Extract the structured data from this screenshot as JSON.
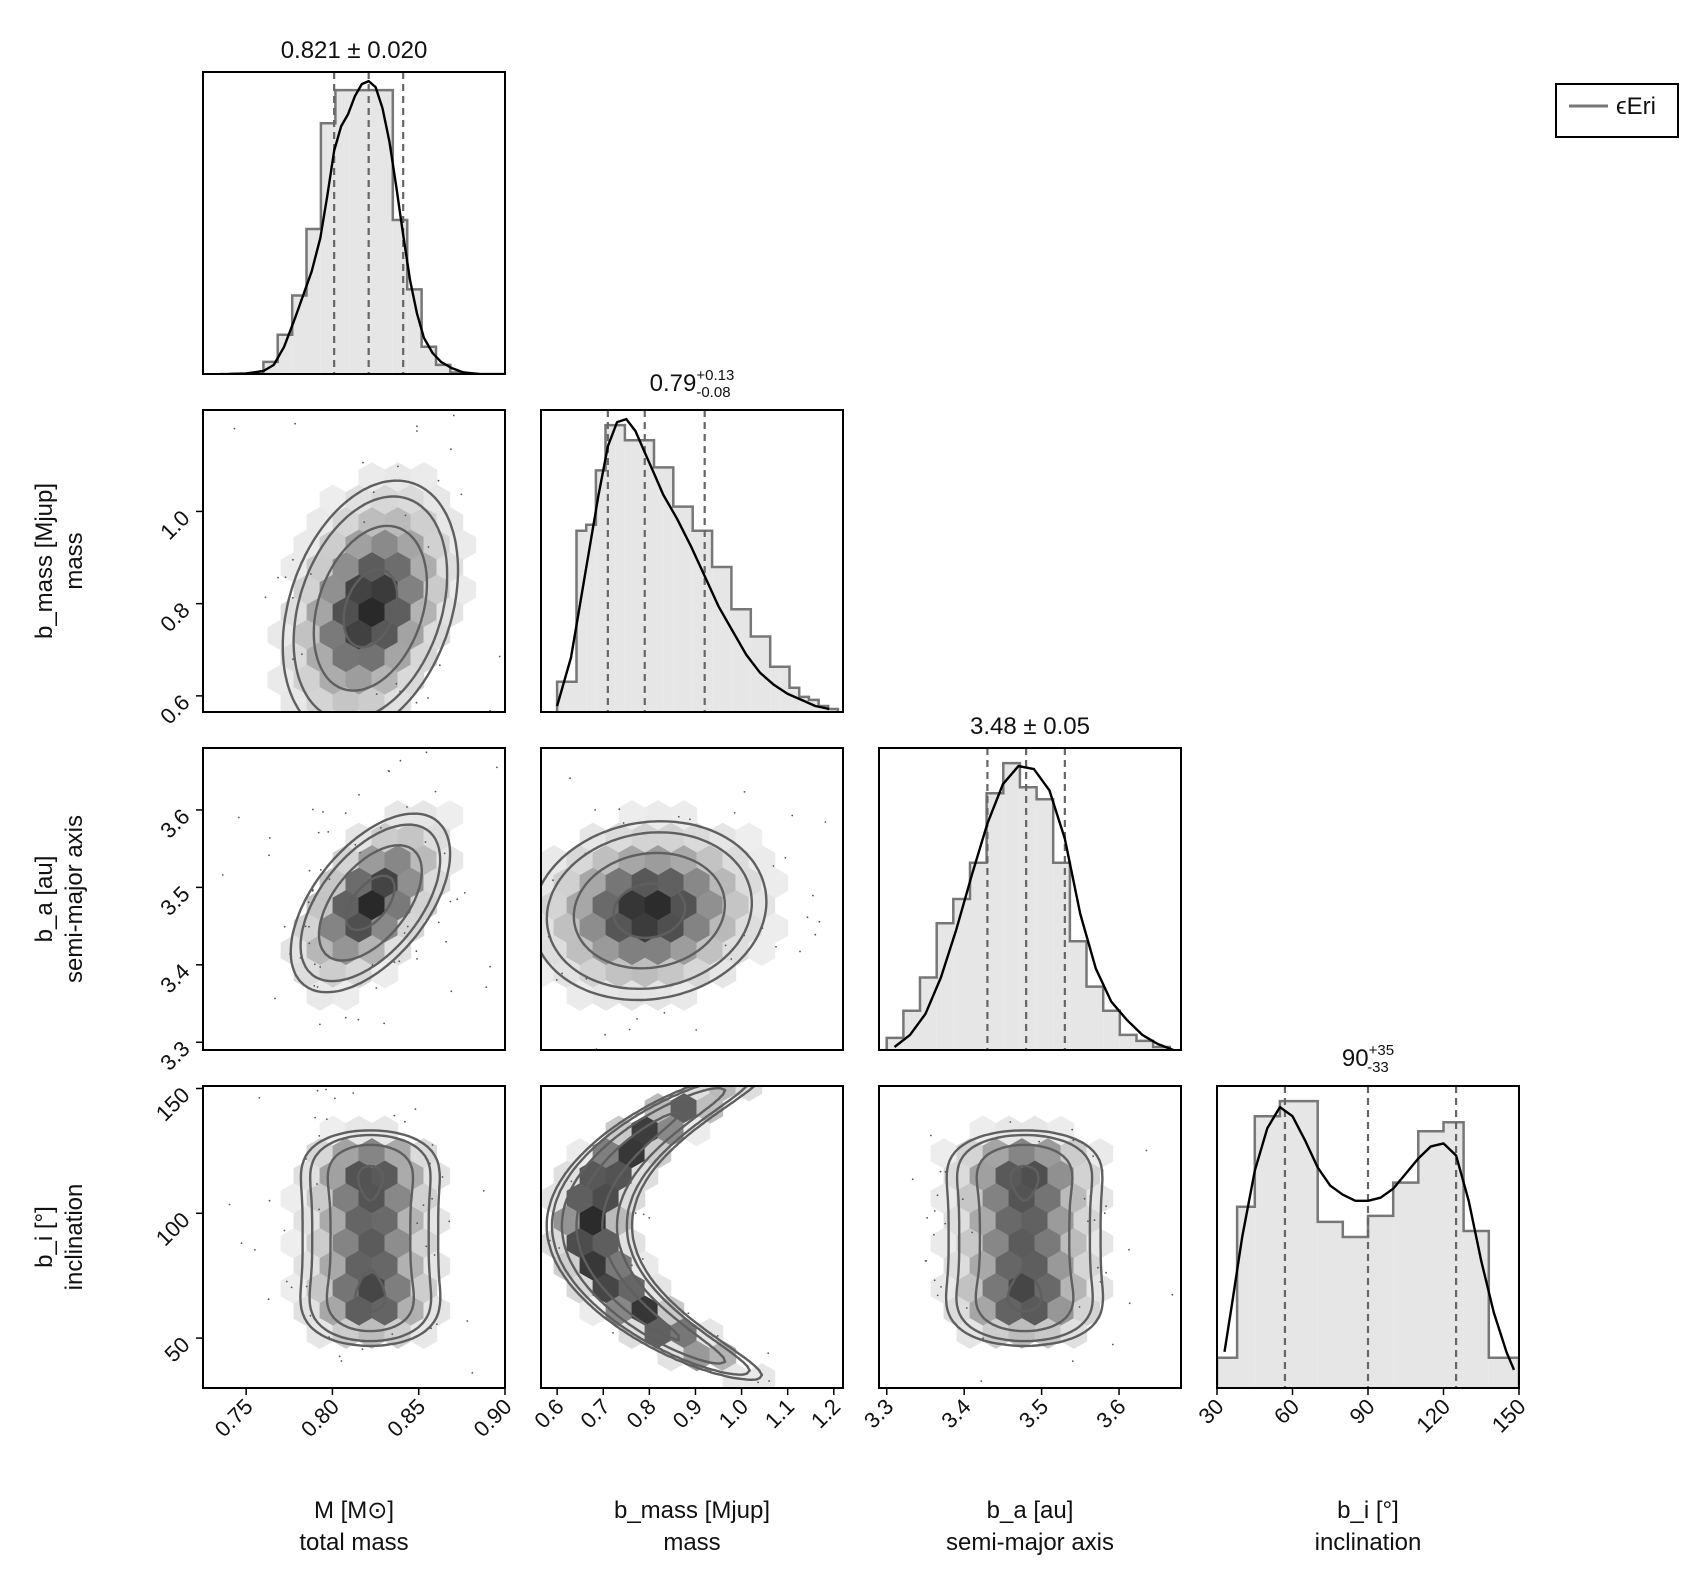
{
  "legend": {
    "label": "ϵEri",
    "placement": "top-right"
  },
  "chart_data": {
    "type": "corner",
    "parameters": [
      {
        "id": "M",
        "label": "M [M⊙]",
        "sublabel": "total mass",
        "lim": [
          0.725,
          0.9
        ],
        "ticks": [
          0.75,
          0.8,
          0.85,
          0.9
        ],
        "tick_labels": [
          "0.75",
          "0.80",
          "0.85",
          "0.90"
        ]
      },
      {
        "id": "b_mass",
        "label": "b_mass [Mjup]",
        "sublabel": "mass",
        "lim": [
          0.565,
          1.22
        ],
        "ticks": [
          0.6,
          0.7,
          0.8,
          0.9,
          1.0,
          1.1,
          1.2
        ],
        "tick_labels": [
          "0.6",
          "0.7",
          "0.8",
          "0.9",
          "1.0",
          "1.1",
          "1.2"
        ],
        "row_ticks": [
          0.6,
          0.8,
          1.0
        ],
        "row_tick_labels": [
          "0.6",
          "0.8",
          "1.0"
        ]
      },
      {
        "id": "b_a",
        "label": "b_a [au]",
        "sublabel": "semi-major axis",
        "lim": [
          3.29,
          3.68
        ],
        "ticks": [
          3.3,
          3.4,
          3.5,
          3.6
        ],
        "tick_labels": [
          "3.3",
          "3.4",
          "3.5",
          "3.6"
        ]
      },
      {
        "id": "b_i",
        "label": "b_i [°]",
        "sublabel": "inclination",
        "lim": [
          30,
          150
        ],
        "ticks": [
          30,
          60,
          90,
          120,
          150
        ],
        "tick_labels": [
          "30",
          "60",
          "90",
          "120",
          "150"
        ],
        "row_lim": [
          30,
          151
        ],
        "row_ticks": [
          50,
          100,
          150
        ],
        "row_tick_labels": [
          "50",
          "100",
          "150"
        ]
      }
    ],
    "summaries": [
      {
        "param": "M",
        "text": "0.821 ± 0.020",
        "median": 0.821,
        "lo": 0.801,
        "hi": 0.841
      },
      {
        "param": "b_mass",
        "base": "0.79",
        "sup": "+0.13",
        "sub": "-0.08",
        "median": 0.79,
        "lo": 0.71,
        "hi": 0.92
      },
      {
        "param": "b_a",
        "text": "3.48 ± 0.05",
        "median": 3.48,
        "lo": 3.43,
        "hi": 3.53
      },
      {
        "param": "b_i",
        "base": "90",
        "sup": "+35",
        "sub": "-33",
        "median": 90,
        "lo": 57,
        "hi": 125
      }
    ],
    "histograms": {
      "M": {
        "edges": [
          0.735,
          0.7433,
          0.7517,
          0.76,
          0.7683,
          0.7767,
          0.785,
          0.7933,
          0.8017,
          0.81,
          0.8183,
          0.8267,
          0.835,
          0.8433,
          0.8517,
          0.86,
          0.8683,
          0.8767,
          0.885,
          0.8933,
          0.9
        ],
        "counts": [
          0,
          0,
          0,
          0.04,
          0.13,
          0.26,
          0.48,
          0.83,
          0.94,
          0.94,
          0.94,
          0.94,
          0.51,
          0.28,
          0.09,
          0.03,
          0.005,
          0,
          0,
          0
        ],
        "kde_x": [
          0.74,
          0.75,
          0.76,
          0.766,
          0.772,
          0.778,
          0.783,
          0.788,
          0.793,
          0.797,
          0.801,
          0.805,
          0.809,
          0.813,
          0.817,
          0.821,
          0.825,
          0.829,
          0.833,
          0.837,
          0.841,
          0.845,
          0.849,
          0.853,
          0.858,
          0.863,
          0.869,
          0.876,
          0.885
        ],
        "kde_y": [
          0,
          0.002,
          0.01,
          0.03,
          0.09,
          0.18,
          0.26,
          0.34,
          0.45,
          0.59,
          0.74,
          0.82,
          0.86,
          0.92,
          0.96,
          0.97,
          0.95,
          0.88,
          0.77,
          0.62,
          0.46,
          0.31,
          0.2,
          0.12,
          0.07,
          0.04,
          0.02,
          0.005,
          0
        ]
      },
      "b_mass": {
        "edges": [
          0.6,
          0.621,
          0.642,
          0.663,
          0.684,
          0.705,
          0.726,
          0.747,
          0.768,
          0.789,
          0.81,
          0.831,
          0.852,
          0.873,
          0.894,
          0.915,
          0.936,
          0.957,
          0.978,
          0.999,
          1.02,
          1.041,
          1.062,
          1.083,
          1.104,
          1.125,
          1.146,
          1.167,
          1.188,
          1.209
        ],
        "counts": [
          0.1,
          0.1,
          0.6,
          0.62,
          0.8,
          0.95,
          0.95,
          0.9,
          0.9,
          0.9,
          0.81,
          0.81,
          0.68,
          0.68,
          0.6,
          0.6,
          0.48,
          0.48,
          0.34,
          0.34,
          0.25,
          0.25,
          0.15,
          0.15,
          0.08,
          0.05,
          0.04,
          0.02,
          0.01
        ],
        "kde_x": [
          0.6,
          0.63,
          0.66,
          0.69,
          0.71,
          0.73,
          0.75,
          0.77,
          0.79,
          0.81,
          0.83,
          0.86,
          0.89,
          0.92,
          0.95,
          0.98,
          1.01,
          1.04,
          1.07,
          1.1,
          1.13,
          1.16,
          1.19
        ],
        "kde_y": [
          0.02,
          0.18,
          0.45,
          0.72,
          0.88,
          0.96,
          0.97,
          0.93,
          0.86,
          0.79,
          0.72,
          0.64,
          0.55,
          0.45,
          0.35,
          0.27,
          0.19,
          0.13,
          0.09,
          0.06,
          0.04,
          0.02,
          0.01
        ]
      },
      "b_a": {
        "edges": [
          3.3,
          3.3215,
          3.343,
          3.3645,
          3.386,
          3.4075,
          3.429,
          3.4505,
          3.472,
          3.4935,
          3.515,
          3.5365,
          3.558,
          3.5795,
          3.601,
          3.6225,
          3.644,
          3.6655
        ],
        "counts": [
          0.04,
          0.13,
          0.24,
          0.42,
          0.5,
          0.62,
          0.85,
          0.95,
          0.87,
          0.83,
          0.62,
          0.36,
          0.21,
          0.13,
          0.05,
          0.03,
          0.01
        ],
        "kde_x": [
          3.31,
          3.33,
          3.35,
          3.37,
          3.39,
          3.41,
          3.43,
          3.45,
          3.47,
          3.49,
          3.51,
          3.53,
          3.55,
          3.57,
          3.59,
          3.61,
          3.63,
          3.65,
          3.67
        ],
        "kde_y": [
          0.01,
          0.05,
          0.12,
          0.24,
          0.4,
          0.58,
          0.75,
          0.88,
          0.94,
          0.93,
          0.86,
          0.7,
          0.45,
          0.27,
          0.16,
          0.1,
          0.05,
          0.02,
          0
        ]
      },
      "b_i": {
        "edges": [
          30,
          38,
          45,
          55,
          70,
          80,
          90,
          100,
          110,
          120,
          128,
          138,
          150
        ],
        "counts": [
          0.1,
          0.6,
          0.9,
          0.95,
          0.55,
          0.5,
          0.57,
          0.68,
          0.85,
          0.88,
          0.52,
          0.1
        ],
        "kde_x": [
          33,
          36,
          40,
          45,
          50,
          55,
          60,
          65,
          70,
          75,
          80,
          85,
          90,
          95,
          100,
          105,
          110,
          115,
          120,
          125,
          130,
          135,
          140,
          145,
          148
        ],
        "kde_y": [
          0.12,
          0.28,
          0.5,
          0.72,
          0.86,
          0.93,
          0.9,
          0.82,
          0.73,
          0.67,
          0.64,
          0.62,
          0.62,
          0.63,
          0.66,
          0.71,
          0.76,
          0.8,
          0.81,
          0.77,
          0.62,
          0.42,
          0.25,
          0.12,
          0.06
        ]
      }
    },
    "pairs": [
      {
        "x": "M",
        "y": "b_mass",
        "shape": "ellipse",
        "cx": 0.822,
        "cy": 0.79,
        "sx": 0.022,
        "sy": 0.12,
        "rho": 0.3
      },
      {
        "x": "M",
        "y": "b_a",
        "shape": "ellipse",
        "cx": 0.822,
        "cy": 3.48,
        "sx": 0.02,
        "sy": 0.05,
        "rho": 0.55
      },
      {
        "x": "b_mass",
        "y": "b_a",
        "shape": "ellipse",
        "cx": 0.8,
        "cy": 3.47,
        "sx": 0.11,
        "sy": 0.05,
        "rho": 0.1
      },
      {
        "x": "M",
        "y": "b_i",
        "shape": "column",
        "cx": 0.822,
        "cy": 90,
        "sx": 0.018,
        "sy": 33
      },
      {
        "x": "b_mass",
        "y": "b_i",
        "shape": "arc",
        "cx": 0.74,
        "cy": 95,
        "sx": 0.04,
        "sy": 38
      },
      {
        "x": "b_a",
        "y": "b_i",
        "shape": "column",
        "cx": 3.478,
        "cy": 90,
        "sx": 0.045,
        "sy": 33
      }
    ]
  }
}
